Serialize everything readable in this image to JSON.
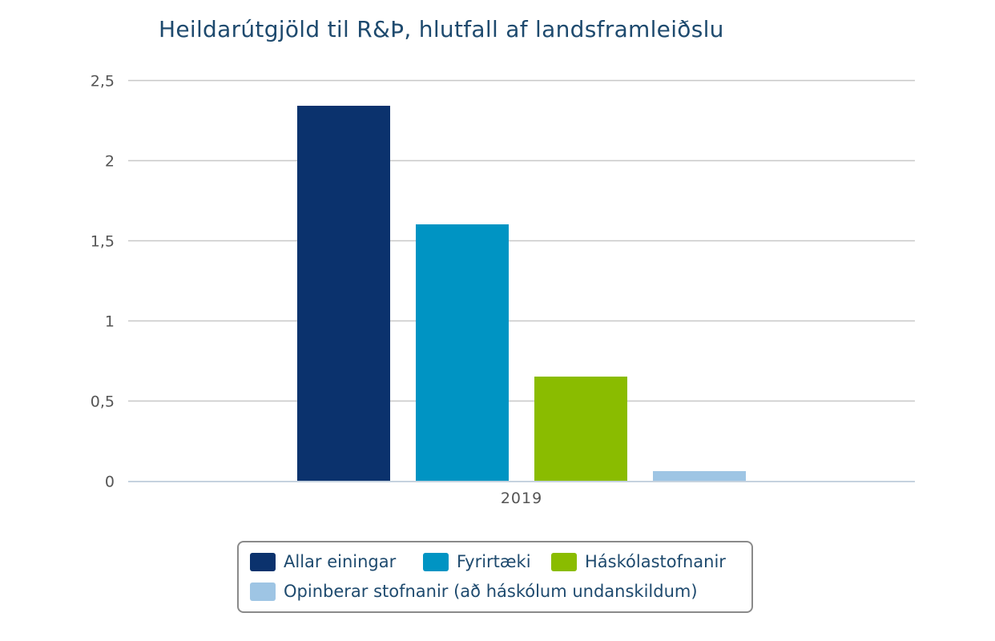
{
  "chart_data": {
    "type": "bar",
    "title": "Heildarútgjöld til R&Þ, hlutfall af landsframleiðslu",
    "categories": [
      "2019"
    ],
    "series": [
      {
        "name": "Allar einingar",
        "values": [
          2.34
        ],
        "color": "#0b326d"
      },
      {
        "name": "Fyrirtæki",
        "values": [
          1.6
        ],
        "color": "#0094c3"
      },
      {
        "name": "Háskólastofnanir",
        "values": [
          0.65
        ],
        "color": "#8abc00"
      },
      {
        "name": "Opinberar stofnanir (að háskólum undanskildum)",
        "values": [
          0.06
        ],
        "color": "#9ec5e4"
      }
    ],
    "ylim": [
      0,
      2.5
    ],
    "yticks": [
      0,
      0.5,
      1,
      1.5,
      2,
      2.5
    ],
    "ytick_labels": [
      "0",
      "0,5",
      "1",
      "1,5",
      "2",
      "2,5"
    ],
    "xlabel": "",
    "ylabel": "",
    "grid": true,
    "legend_position": "bottom-center"
  }
}
